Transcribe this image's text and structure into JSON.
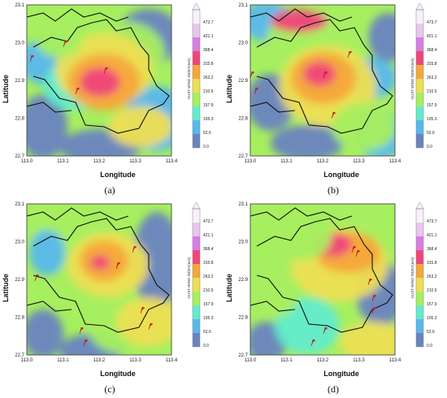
{
  "axes": {
    "ylabel": "Latitude",
    "xlabel": "Longitude",
    "lat_ticks": [
      "23.1",
      "23.0",
      "22.9",
      "22.8",
      "22.7"
    ],
    "lon_ticks": [
      "113.0",
      "113.1",
      "113.2",
      "113.3",
      "113.4"
    ],
    "xlim": [
      113.0,
      113.4
    ],
    "ylim": [
      22.7,
      23.1
    ]
  },
  "colorbar": {
    "title": "GUST WIND INDEX(m/s)",
    "levels": [
      "473.7",
      "421.1",
      "368.4",
      "315.8",
      "263.2",
      "210.5",
      "157.9",
      "105.3",
      "52.6",
      "0.0"
    ],
    "colors": [
      "#f7f1fb",
      "#e9c5ef",
      "#d77de4",
      "#f0457a",
      "#f6a63a",
      "#eedf52",
      "#a6ef5f",
      "#62eccb",
      "#58b8ec",
      "#6a83c0"
    ]
  },
  "panels": [
    {
      "caption": "(a)"
    },
    {
      "caption": "(b)"
    },
    {
      "caption": "(c)"
    },
    {
      "caption": "(d)"
    }
  ]
}
